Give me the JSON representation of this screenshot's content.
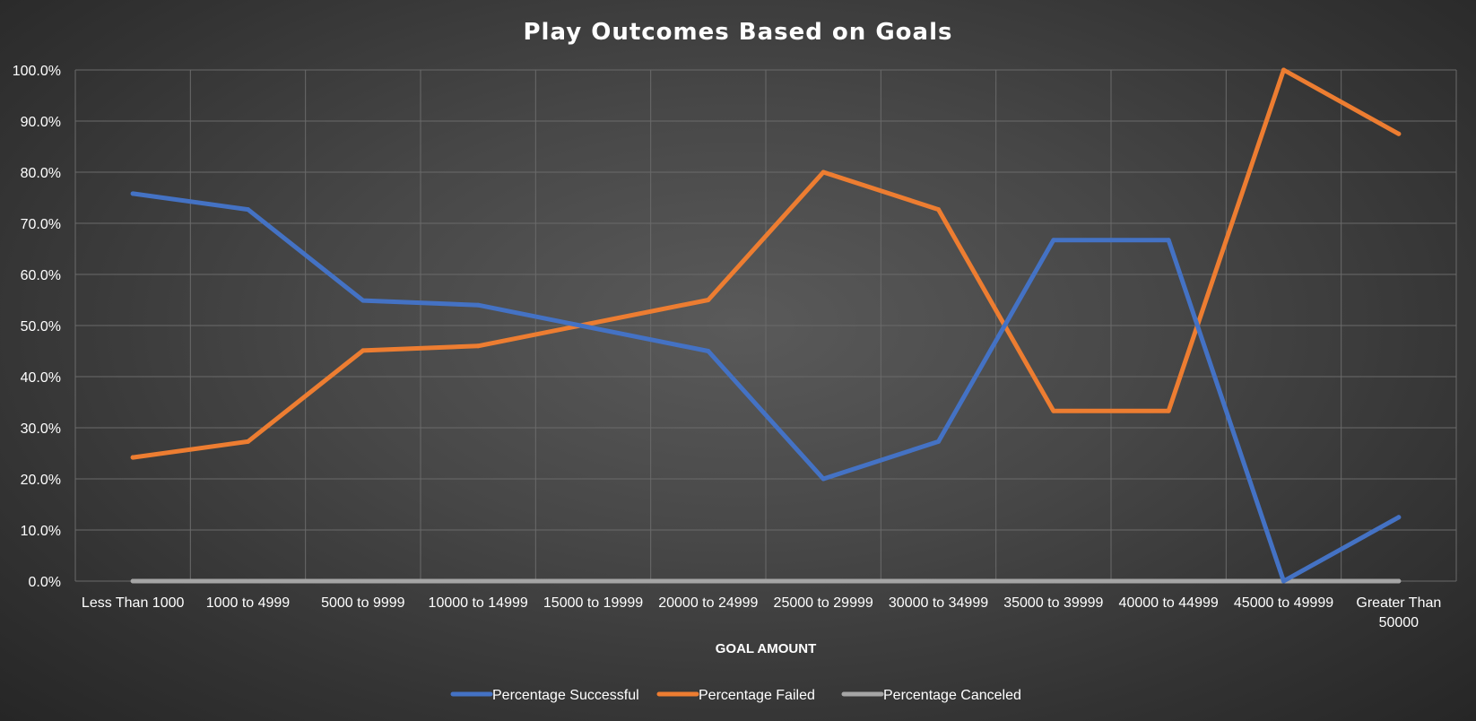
{
  "chart_data": {
    "type": "line",
    "title": "Play Outcomes Based on Goals",
    "xlabel": "GOAL AMOUNT",
    "ylabel": "",
    "ylim": [
      0,
      100
    ],
    "y_ticks": [
      "0.0%",
      "10.0%",
      "20.0%",
      "30.0%",
      "40.0%",
      "50.0%",
      "60.0%",
      "70.0%",
      "80.0%",
      "90.0%",
      "100.0%"
    ],
    "grid": true,
    "legend_position": "bottom",
    "categories": [
      "Less Than 1000",
      "1000 to 4999",
      "5000 to 9999",
      "10000 to 14999",
      "15000 to 19999",
      "20000 to 24999",
      "25000 to 29999",
      "30000 to 34999",
      "35000 to 39999",
      "40000 to 44999",
      "45000 to 49999",
      "Greater Than 50000"
    ],
    "series": [
      {
        "name": "Percentage Successful",
        "color": "#4472c4",
        "values": [
          75.8,
          72.7,
          54.9,
          54.0,
          null,
          45.0,
          20.0,
          27.3,
          66.7,
          66.7,
          0.0,
          12.5
        ]
      },
      {
        "name": "Percentage Failed",
        "color": "#ed7d31",
        "values": [
          24.2,
          27.3,
          45.1,
          46.0,
          null,
          55.0,
          80.0,
          72.7,
          33.3,
          33.3,
          100.0,
          87.5
        ]
      },
      {
        "name": "Percentage Canceled",
        "color": "#a5a5a5",
        "values": [
          0,
          0,
          0,
          0,
          null,
          0,
          0,
          0,
          0,
          0,
          0,
          0
        ]
      }
    ]
  }
}
